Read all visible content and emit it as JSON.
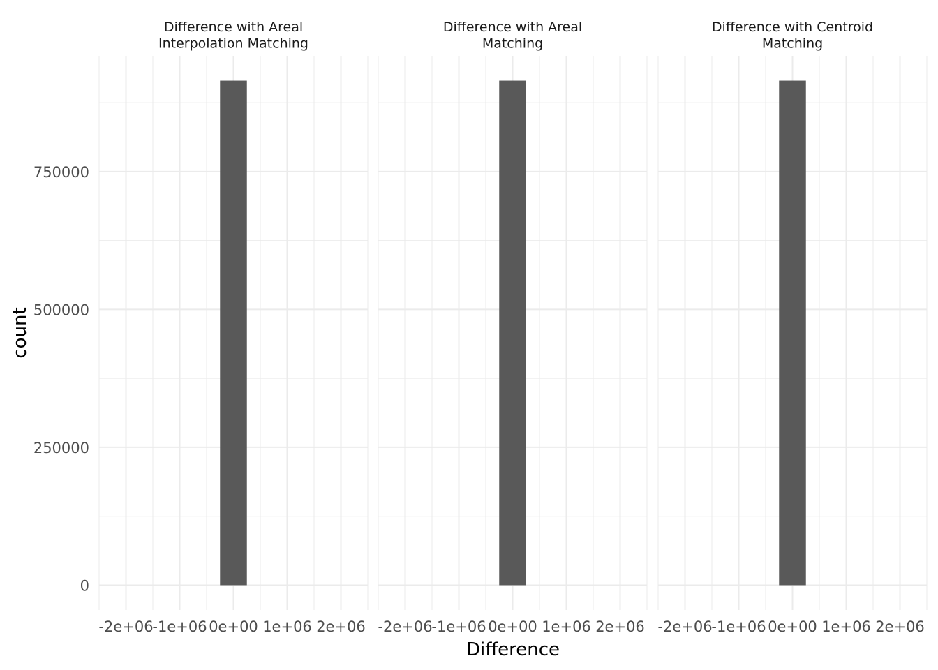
{
  "chart_data": {
    "type": "bar",
    "xlabel": "Difference",
    "ylabel": "count",
    "xlim": [
      -2500000,
      2500000
    ],
    "ylim": [
      -45000,
      960000
    ],
    "x_ticks": [
      -2000000,
      -1000000,
      0,
      1000000,
      2000000
    ],
    "x_tick_labels": [
      "-2e+06",
      "-1e+06",
      "0e+00",
      "1e+06",
      "2e+06"
    ],
    "y_ticks": [
      0,
      250000,
      500000,
      750000
    ],
    "y_tick_labels": [
      "0",
      "250000",
      "500000",
      "750000"
    ],
    "grid": true,
    "bar_color": "#595959",
    "grid_color": "#ebebeb",
    "panels": [
      {
        "title_lines": [
          "Difference with Areal",
          "Interpolation Matching"
        ],
        "bars": [
          {
            "x_min": -250000,
            "x_max": 250000,
            "value": 915000
          }
        ]
      },
      {
        "title_lines": [
          "Difference with Areal",
          "Matching"
        ],
        "bars": [
          {
            "x_min": -250000,
            "x_max": 250000,
            "value": 915000
          }
        ]
      },
      {
        "title_lines": [
          "Difference with Centroid",
          "Matching"
        ],
        "bars": [
          {
            "x_min": -250000,
            "x_max": 250000,
            "value": 915000
          }
        ]
      }
    ]
  }
}
